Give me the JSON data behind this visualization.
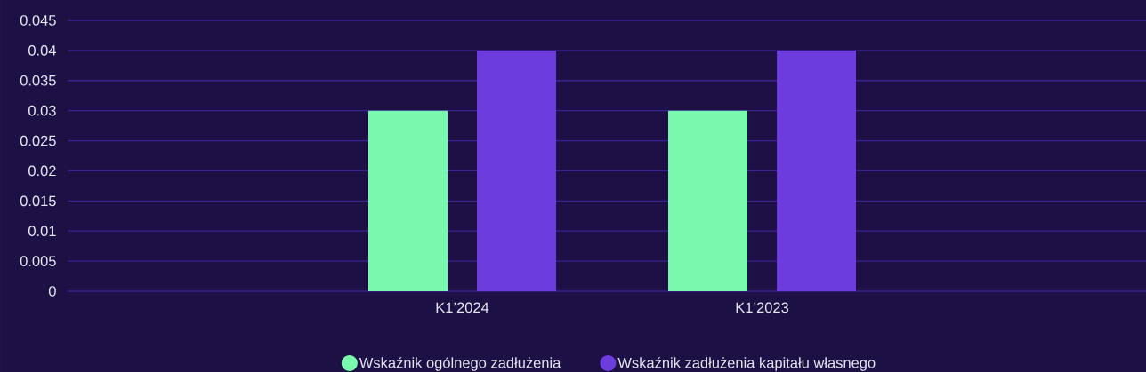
{
  "chart_data": {
    "type": "bar",
    "categories": [
      "K1’2024",
      "K1’2023"
    ],
    "series": [
      {
        "name": "Wskaźnik ogólnego zadłużenia",
        "color": "#78f9ae",
        "values": [
          0.03,
          0.03
        ]
      },
      {
        "name": "Wskaźnik zadłużenia kapitału własnego",
        "color": "#6c3cdc",
        "values": [
          0.04,
          0.04
        ]
      }
    ],
    "ylim": [
      0,
      0.045
    ],
    "yticks": [
      0,
      0.005,
      0.01,
      0.015,
      0.02,
      0.025,
      0.03,
      0.035,
      0.04,
      0.045
    ],
    "grid": "y",
    "legend": "bottom"
  }
}
